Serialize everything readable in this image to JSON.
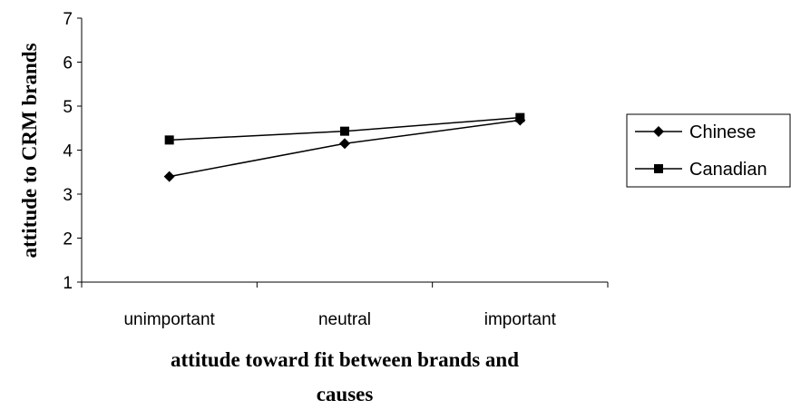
{
  "chart_data": {
    "type": "line",
    "categories": [
      "unimportant",
      "neutral",
      "important"
    ],
    "series": [
      {
        "name": "Chinese",
        "marker": "diamond",
        "values": [
          3.4,
          4.15,
          4.68
        ]
      },
      {
        "name": "Canadian",
        "marker": "square",
        "values": [
          4.23,
          4.43,
          4.74
        ]
      }
    ],
    "xlabel_lines": [
      "attitude toward fit between brands and",
      "causes"
    ],
    "ylabel": "attitude to CRM brands",
    "ylim": [
      1,
      7
    ],
    "yticks": [
      1,
      2,
      3,
      4,
      5,
      6,
      7
    ],
    "grid": false,
    "legend_position": "right",
    "line_color": "#000000"
  }
}
